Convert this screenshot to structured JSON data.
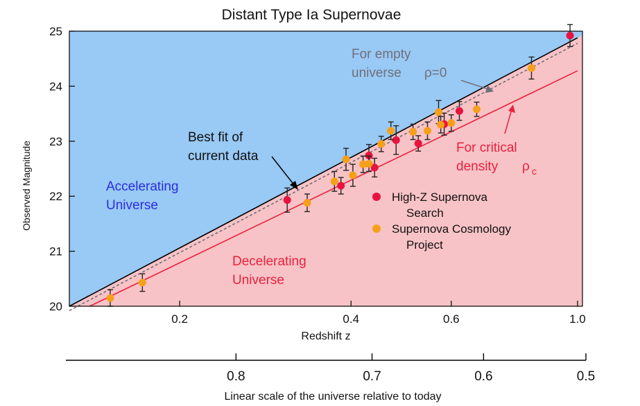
{
  "chart_data": {
    "type": "scatter",
    "title": "Distant Type Ia Supernovae",
    "xlabel": "Redshift z",
    "ylabel": "Observed Magnitude",
    "x_scale": "log",
    "xlim": [
      0.128,
      1.02
    ],
    "ylim": [
      20,
      25
    ],
    "x_ticks": [
      0.2,
      0.4,
      0.6,
      1.0
    ],
    "x_tick_labels": [
      "0.2",
      "0.4",
      "0.6",
      "1.0"
    ],
    "y_ticks": [
      20,
      21,
      22,
      23,
      24,
      25
    ],
    "y_tick_labels": [
      "20",
      "21",
      "22",
      "23",
      "24",
      "25"
    ],
    "secondary_x_axis": {
      "label": "Linear scale of the universe relative to today",
      "ticks": [
        0.8,
        0.7,
        0.6,
        0.5
      ],
      "tick_labels": [
        "0.8",
        "0.7",
        "0.6",
        "0.5"
      ]
    },
    "regions": {
      "upper": {
        "label": [
          "Accelerating",
          "Universe"
        ],
        "color": "#99c9f5"
      },
      "lower": {
        "label": [
          "Decelerating",
          "Universe"
        ],
        "color": "#f8c3c6"
      }
    },
    "lines": [
      {
        "name": "best_fit",
        "color": "#000000",
        "style": "solid",
        "points": [
          [
            0.128,
            20.0
          ],
          [
            1.0,
            24.88
          ]
        ]
      },
      {
        "name": "empty",
        "color": "#6f6f7a",
        "style": "dashed",
        "points": [
          [
            0.128,
            19.92
          ],
          [
            1.0,
            24.78
          ]
        ]
      },
      {
        "name": "critical",
        "color": "#e8213f",
        "style": "solid",
        "points": [
          [
            0.139,
            20.0
          ],
          [
            1.0,
            24.28
          ]
        ]
      }
    ],
    "annotations": {
      "best_fit": [
        "Best fit of",
        "current data"
      ],
      "empty": [
        "For empty",
        "universe"
      ],
      "empty_math": "ρ=0",
      "critical": [
        "For critical",
        "density"
      ],
      "critical_math": "ρ",
      "critical_sub": "c"
    },
    "series": [
      {
        "name": "High-Z Supernova Search",
        "color": "#e8133f",
        "points": [
          {
            "x": 0.309,
            "y": 21.93,
            "err": 0.22
          },
          {
            "x": 0.384,
            "y": 22.19,
            "err": 0.15
          },
          {
            "x": 0.43,
            "y": 22.74,
            "err": 0.2
          },
          {
            "x": 0.44,
            "y": 22.52,
            "err": 0.17
          },
          {
            "x": 0.48,
            "y": 23.02,
            "err": 0.26
          },
          {
            "x": 0.525,
            "y": 22.96,
            "err": 0.14
          },
          {
            "x": 0.583,
            "y": 23.31,
            "err": 0.2
          },
          {
            "x": 0.62,
            "y": 23.55,
            "err": 0.17
          },
          {
            "x": 0.97,
            "y": 24.92,
            "err": 0.2
          }
        ]
      },
      {
        "name": "Supernova Cosmology Project",
        "color": "#f6a019",
        "points": [
          {
            "x": 0.151,
            "y": 20.15,
            "err": 0.15
          },
          {
            "x": 0.172,
            "y": 20.43,
            "err": 0.16
          },
          {
            "x": 0.335,
            "y": 21.88,
            "err": 0.16
          },
          {
            "x": 0.374,
            "y": 22.27,
            "err": 0.18
          },
          {
            "x": 0.392,
            "y": 22.67,
            "err": 0.2
          },
          {
            "x": 0.403,
            "y": 22.38,
            "err": 0.2
          },
          {
            "x": 0.42,
            "y": 22.58,
            "err": 0.15
          },
          {
            "x": 0.43,
            "y": 22.59,
            "err": 0.14
          },
          {
            "x": 0.452,
            "y": 22.95,
            "err": 0.14
          },
          {
            "x": 0.47,
            "y": 23.19,
            "err": 0.16
          },
          {
            "x": 0.514,
            "y": 23.17,
            "err": 0.14
          },
          {
            "x": 0.545,
            "y": 23.19,
            "err": 0.16
          },
          {
            "x": 0.57,
            "y": 23.53,
            "err": 0.21
          },
          {
            "x": 0.575,
            "y": 23.3,
            "err": 0.15
          },
          {
            "x": 0.6,
            "y": 23.33,
            "err": 0.15
          },
          {
            "x": 0.665,
            "y": 23.58,
            "err": 0.13
          },
          {
            "x": 0.83,
            "y": 24.33,
            "err": 0.2
          }
        ]
      }
    ]
  }
}
